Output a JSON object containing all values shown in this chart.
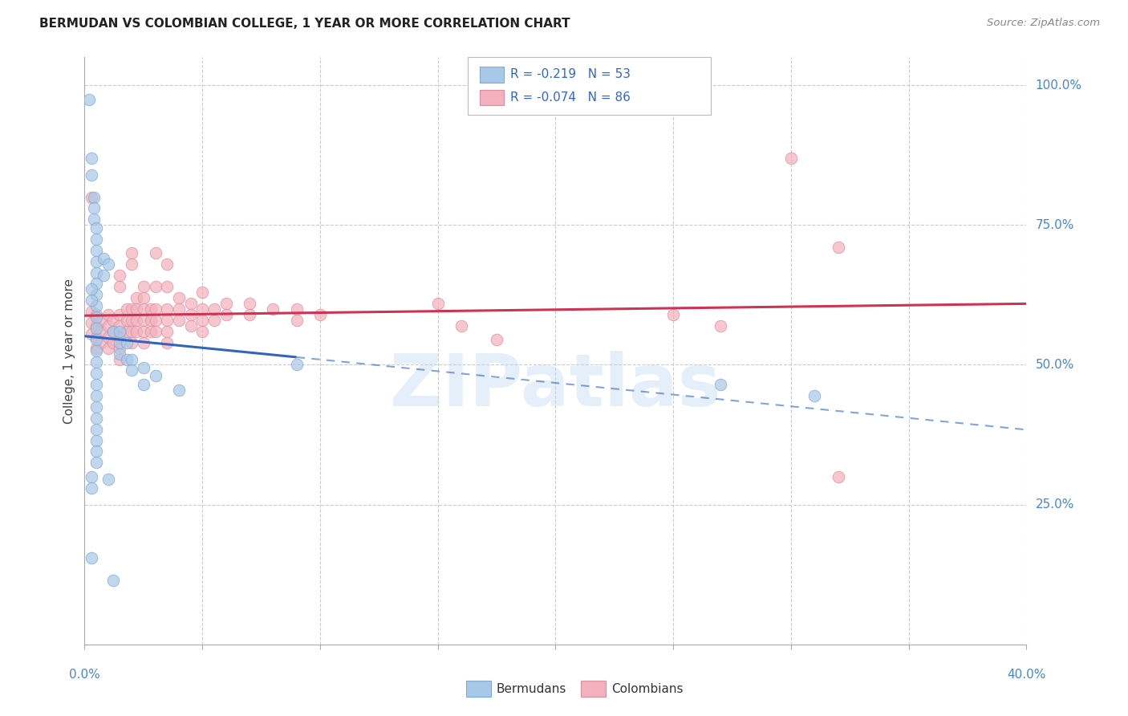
{
  "title": "BERMUDAN VS COLOMBIAN COLLEGE, 1 YEAR OR MORE CORRELATION CHART",
  "source": "Source: ZipAtlas.com",
  "ylabel": "College, 1 year or more",
  "legend_blue_label": "Bermudans",
  "legend_pink_label": "Colombians",
  "R_blue": -0.219,
  "N_blue": 53,
  "R_pink": -0.074,
  "N_pink": 86,
  "blue_color": "#A8C8E8",
  "pink_color": "#F4B0BC",
  "blue_edge": "#80A8D0",
  "pink_edge": "#D890A0",
  "blue_line_color": "#3366BB",
  "pink_line_color": "#CC3355",
  "xmin": 0.0,
  "xmax": 0.4,
  "ymin": 0.0,
  "ymax": 1.05,
  "blue_scatter": [
    [
      0.002,
      0.975
    ],
    [
      0.003,
      0.87
    ],
    [
      0.003,
      0.84
    ],
    [
      0.004,
      0.8
    ],
    [
      0.004,
      0.78
    ],
    [
      0.004,
      0.76
    ],
    [
      0.005,
      0.745
    ],
    [
      0.005,
      0.725
    ],
    [
      0.005,
      0.705
    ],
    [
      0.005,
      0.685
    ],
    [
      0.005,
      0.665
    ],
    [
      0.005,
      0.645
    ],
    [
      0.005,
      0.625
    ],
    [
      0.005,
      0.605
    ],
    [
      0.005,
      0.585
    ],
    [
      0.005,
      0.565
    ],
    [
      0.005,
      0.545
    ],
    [
      0.005,
      0.525
    ],
    [
      0.005,
      0.505
    ],
    [
      0.005,
      0.485
    ],
    [
      0.005,
      0.465
    ],
    [
      0.005,
      0.445
    ],
    [
      0.005,
      0.425
    ],
    [
      0.005,
      0.405
    ],
    [
      0.005,
      0.385
    ],
    [
      0.005,
      0.365
    ],
    [
      0.005,
      0.345
    ],
    [
      0.005,
      0.325
    ],
    [
      0.008,
      0.69
    ],
    [
      0.008,
      0.66
    ],
    [
      0.01,
      0.68
    ],
    [
      0.012,
      0.56
    ],
    [
      0.015,
      0.56
    ],
    [
      0.015,
      0.54
    ],
    [
      0.015,
      0.52
    ],
    [
      0.018,
      0.54
    ],
    [
      0.018,
      0.51
    ],
    [
      0.02,
      0.51
    ],
    [
      0.02,
      0.49
    ],
    [
      0.025,
      0.495
    ],
    [
      0.025,
      0.465
    ],
    [
      0.03,
      0.48
    ],
    [
      0.04,
      0.455
    ],
    [
      0.09,
      0.5
    ],
    [
      0.003,
      0.3
    ],
    [
      0.003,
      0.28
    ],
    [
      0.01,
      0.295
    ],
    [
      0.003,
      0.155
    ],
    [
      0.012,
      0.115
    ],
    [
      0.27,
      0.465
    ],
    [
      0.31,
      0.445
    ],
    [
      0.003,
      0.615
    ],
    [
      0.003,
      0.635
    ]
  ],
  "pink_scatter": [
    [
      0.003,
      0.595
    ],
    [
      0.003,
      0.575
    ],
    [
      0.003,
      0.555
    ],
    [
      0.005,
      0.59
    ],
    [
      0.005,
      0.57
    ],
    [
      0.005,
      0.55
    ],
    [
      0.005,
      0.53
    ],
    [
      0.007,
      0.58
    ],
    [
      0.007,
      0.56
    ],
    [
      0.007,
      0.54
    ],
    [
      0.01,
      0.59
    ],
    [
      0.01,
      0.57
    ],
    [
      0.01,
      0.55
    ],
    [
      0.01,
      0.53
    ],
    [
      0.012,
      0.58
    ],
    [
      0.012,
      0.56
    ],
    [
      0.012,
      0.54
    ],
    [
      0.015,
      0.66
    ],
    [
      0.015,
      0.64
    ],
    [
      0.015,
      0.59
    ],
    [
      0.015,
      0.57
    ],
    [
      0.015,
      0.55
    ],
    [
      0.015,
      0.53
    ],
    [
      0.015,
      0.51
    ],
    [
      0.018,
      0.6
    ],
    [
      0.018,
      0.58
    ],
    [
      0.018,
      0.56
    ],
    [
      0.02,
      0.7
    ],
    [
      0.02,
      0.68
    ],
    [
      0.02,
      0.6
    ],
    [
      0.02,
      0.58
    ],
    [
      0.02,
      0.56
    ],
    [
      0.02,
      0.54
    ],
    [
      0.022,
      0.62
    ],
    [
      0.022,
      0.6
    ],
    [
      0.022,
      0.58
    ],
    [
      0.022,
      0.56
    ],
    [
      0.025,
      0.64
    ],
    [
      0.025,
      0.62
    ],
    [
      0.025,
      0.6
    ],
    [
      0.025,
      0.58
    ],
    [
      0.025,
      0.56
    ],
    [
      0.025,
      0.54
    ],
    [
      0.028,
      0.6
    ],
    [
      0.028,
      0.58
    ],
    [
      0.028,
      0.56
    ],
    [
      0.03,
      0.7
    ],
    [
      0.03,
      0.64
    ],
    [
      0.03,
      0.6
    ],
    [
      0.03,
      0.58
    ],
    [
      0.03,
      0.56
    ],
    [
      0.035,
      0.68
    ],
    [
      0.035,
      0.64
    ],
    [
      0.035,
      0.6
    ],
    [
      0.035,
      0.58
    ],
    [
      0.035,
      0.56
    ],
    [
      0.035,
      0.54
    ],
    [
      0.04,
      0.62
    ],
    [
      0.04,
      0.6
    ],
    [
      0.04,
      0.58
    ],
    [
      0.045,
      0.61
    ],
    [
      0.045,
      0.59
    ],
    [
      0.045,
      0.57
    ],
    [
      0.05,
      0.63
    ],
    [
      0.05,
      0.6
    ],
    [
      0.05,
      0.58
    ],
    [
      0.05,
      0.56
    ],
    [
      0.055,
      0.6
    ],
    [
      0.055,
      0.58
    ],
    [
      0.06,
      0.61
    ],
    [
      0.06,
      0.59
    ],
    [
      0.07,
      0.61
    ],
    [
      0.07,
      0.59
    ],
    [
      0.08,
      0.6
    ],
    [
      0.09,
      0.6
    ],
    [
      0.09,
      0.58
    ],
    [
      0.1,
      0.59
    ],
    [
      0.15,
      0.61
    ],
    [
      0.16,
      0.57
    ],
    [
      0.175,
      0.545
    ],
    [
      0.25,
      0.59
    ],
    [
      0.27,
      0.57
    ],
    [
      0.3,
      0.87
    ],
    [
      0.32,
      0.71
    ],
    [
      0.003,
      0.8
    ],
    [
      0.32,
      0.3
    ]
  ],
  "blue_line_x0": 0.0,
  "blue_line_x_solid_end": 0.09,
  "blue_line_x1": 0.4,
  "pink_line_x0": 0.0,
  "pink_line_x1": 0.4,
  "watermark": "ZIPatlas",
  "grid_color": "#CCCCCC",
  "grid_style": "--",
  "title_fontsize": 11,
  "axis_label_fontsize": 11,
  "right_label_color": "#4488CC",
  "source_color": "#888888"
}
